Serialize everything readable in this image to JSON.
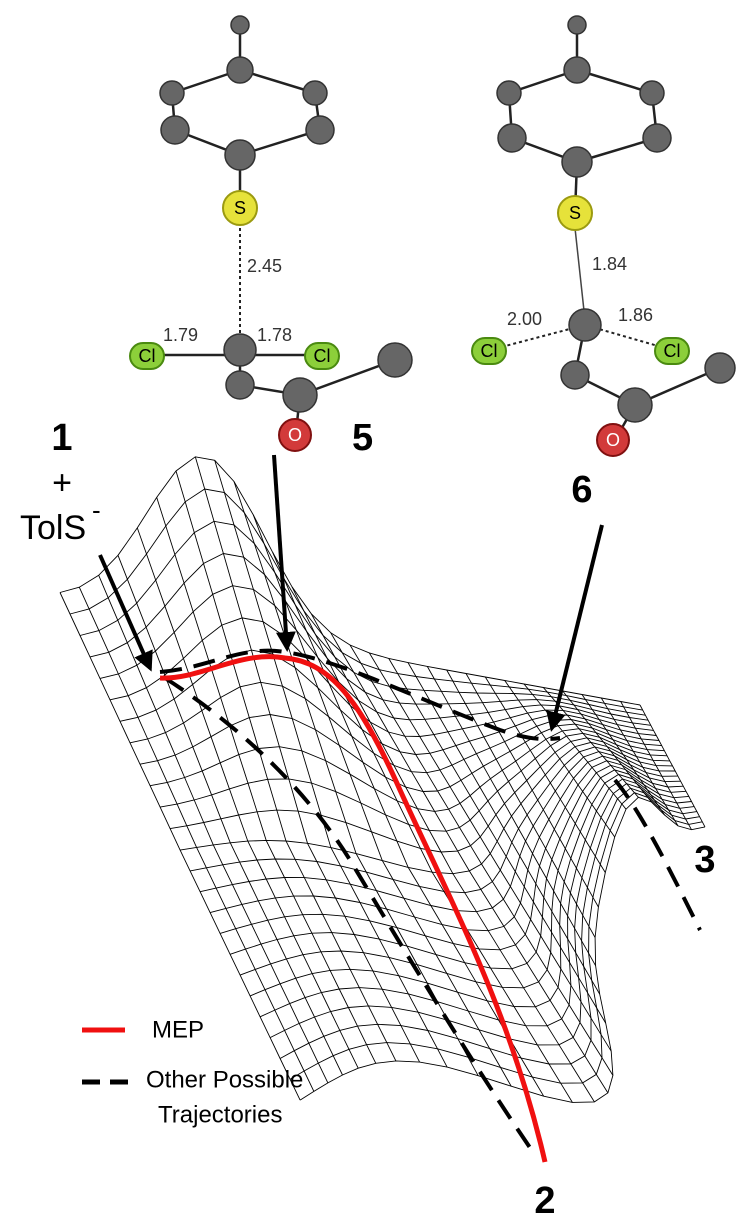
{
  "structures": [
    {
      "label": "5",
      "sulfur": "S",
      "oxygen": "O",
      "chlorines": [
        "Cl",
        "Cl"
      ],
      "distances": [
        "2.45",
        "1.79",
        "1.78"
      ]
    },
    {
      "label": "6",
      "sulfur": "S",
      "oxygen": "O",
      "chlorines": [
        "Cl",
        "Cl"
      ],
      "distances": [
        "1.84",
        "2.00",
        "1.86"
      ]
    }
  ],
  "reactant": {
    "number": "1",
    "plus": "+",
    "name": "TolS",
    "charge": "-"
  },
  "products": [
    "2",
    "3"
  ],
  "legend": [
    {
      "label": "MEP"
    },
    {
      "lines": [
        "Other Possible",
        "Trajectories"
      ]
    }
  ]
}
